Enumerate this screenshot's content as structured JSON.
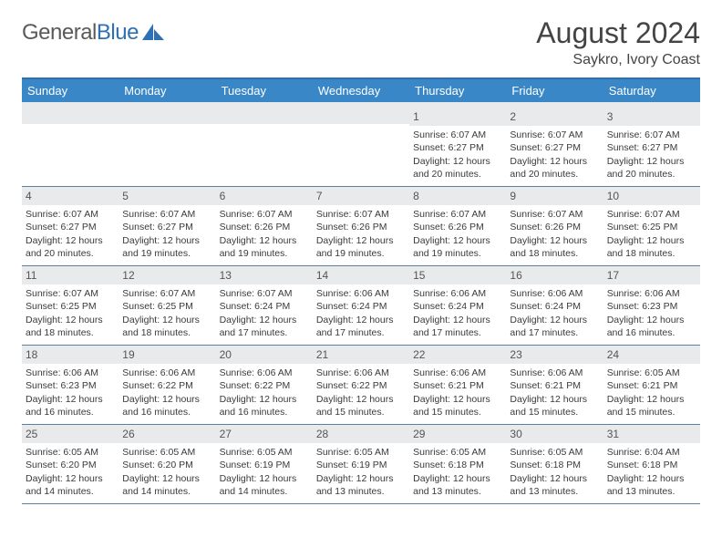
{
  "logo": {
    "text_gray": "General",
    "text_blue": "Blue"
  },
  "title": "August 2024",
  "subtitle": "Saykro, Ivory Coast",
  "colors": {
    "header_bar": "#3a87c8",
    "border_top": "#2f6fb3",
    "week_divider": "#5b7fa5",
    "daynum_bg": "#e9eaeb",
    "text": "#3a3a3a"
  },
  "weekdays": [
    "Sunday",
    "Monday",
    "Tuesday",
    "Wednesday",
    "Thursday",
    "Friday",
    "Saturday"
  ],
  "weeks": [
    [
      {
        "num": "",
        "lines": []
      },
      {
        "num": "",
        "lines": []
      },
      {
        "num": "",
        "lines": []
      },
      {
        "num": "",
        "lines": []
      },
      {
        "num": "1",
        "lines": [
          "Sunrise: 6:07 AM",
          "Sunset: 6:27 PM",
          "Daylight: 12 hours and 20 minutes."
        ]
      },
      {
        "num": "2",
        "lines": [
          "Sunrise: 6:07 AM",
          "Sunset: 6:27 PM",
          "Daylight: 12 hours and 20 minutes."
        ]
      },
      {
        "num": "3",
        "lines": [
          "Sunrise: 6:07 AM",
          "Sunset: 6:27 PM",
          "Daylight: 12 hours and 20 minutes."
        ]
      }
    ],
    [
      {
        "num": "4",
        "lines": [
          "Sunrise: 6:07 AM",
          "Sunset: 6:27 PM",
          "Daylight: 12 hours and 20 minutes."
        ]
      },
      {
        "num": "5",
        "lines": [
          "Sunrise: 6:07 AM",
          "Sunset: 6:27 PM",
          "Daylight: 12 hours and 19 minutes."
        ]
      },
      {
        "num": "6",
        "lines": [
          "Sunrise: 6:07 AM",
          "Sunset: 6:26 PM",
          "Daylight: 12 hours and 19 minutes."
        ]
      },
      {
        "num": "7",
        "lines": [
          "Sunrise: 6:07 AM",
          "Sunset: 6:26 PM",
          "Daylight: 12 hours and 19 minutes."
        ]
      },
      {
        "num": "8",
        "lines": [
          "Sunrise: 6:07 AM",
          "Sunset: 6:26 PM",
          "Daylight: 12 hours and 19 minutes."
        ]
      },
      {
        "num": "9",
        "lines": [
          "Sunrise: 6:07 AM",
          "Sunset: 6:26 PM",
          "Daylight: 12 hours and 18 minutes."
        ]
      },
      {
        "num": "10",
        "lines": [
          "Sunrise: 6:07 AM",
          "Sunset: 6:25 PM",
          "Daylight: 12 hours and 18 minutes."
        ]
      }
    ],
    [
      {
        "num": "11",
        "lines": [
          "Sunrise: 6:07 AM",
          "Sunset: 6:25 PM",
          "Daylight: 12 hours and 18 minutes."
        ]
      },
      {
        "num": "12",
        "lines": [
          "Sunrise: 6:07 AM",
          "Sunset: 6:25 PM",
          "Daylight: 12 hours and 18 minutes."
        ]
      },
      {
        "num": "13",
        "lines": [
          "Sunrise: 6:07 AM",
          "Sunset: 6:24 PM",
          "Daylight: 12 hours and 17 minutes."
        ]
      },
      {
        "num": "14",
        "lines": [
          "Sunrise: 6:06 AM",
          "Sunset: 6:24 PM",
          "Daylight: 12 hours and 17 minutes."
        ]
      },
      {
        "num": "15",
        "lines": [
          "Sunrise: 6:06 AM",
          "Sunset: 6:24 PM",
          "Daylight: 12 hours and 17 minutes."
        ]
      },
      {
        "num": "16",
        "lines": [
          "Sunrise: 6:06 AM",
          "Sunset: 6:24 PM",
          "Daylight: 12 hours and 17 minutes."
        ]
      },
      {
        "num": "17",
        "lines": [
          "Sunrise: 6:06 AM",
          "Sunset: 6:23 PM",
          "Daylight: 12 hours and 16 minutes."
        ]
      }
    ],
    [
      {
        "num": "18",
        "lines": [
          "Sunrise: 6:06 AM",
          "Sunset: 6:23 PM",
          "Daylight: 12 hours and 16 minutes."
        ]
      },
      {
        "num": "19",
        "lines": [
          "Sunrise: 6:06 AM",
          "Sunset: 6:22 PM",
          "Daylight: 12 hours and 16 minutes."
        ]
      },
      {
        "num": "20",
        "lines": [
          "Sunrise: 6:06 AM",
          "Sunset: 6:22 PM",
          "Daylight: 12 hours and 16 minutes."
        ]
      },
      {
        "num": "21",
        "lines": [
          "Sunrise: 6:06 AM",
          "Sunset: 6:22 PM",
          "Daylight: 12 hours and 15 minutes."
        ]
      },
      {
        "num": "22",
        "lines": [
          "Sunrise: 6:06 AM",
          "Sunset: 6:21 PM",
          "Daylight: 12 hours and 15 minutes."
        ]
      },
      {
        "num": "23",
        "lines": [
          "Sunrise: 6:06 AM",
          "Sunset: 6:21 PM",
          "Daylight: 12 hours and 15 minutes."
        ]
      },
      {
        "num": "24",
        "lines": [
          "Sunrise: 6:05 AM",
          "Sunset: 6:21 PM",
          "Daylight: 12 hours and 15 minutes."
        ]
      }
    ],
    [
      {
        "num": "25",
        "lines": [
          "Sunrise: 6:05 AM",
          "Sunset: 6:20 PM",
          "Daylight: 12 hours and 14 minutes."
        ]
      },
      {
        "num": "26",
        "lines": [
          "Sunrise: 6:05 AM",
          "Sunset: 6:20 PM",
          "Daylight: 12 hours and 14 minutes."
        ]
      },
      {
        "num": "27",
        "lines": [
          "Sunrise: 6:05 AM",
          "Sunset: 6:19 PM",
          "Daylight: 12 hours and 14 minutes."
        ]
      },
      {
        "num": "28",
        "lines": [
          "Sunrise: 6:05 AM",
          "Sunset: 6:19 PM",
          "Daylight: 12 hours and 13 minutes."
        ]
      },
      {
        "num": "29",
        "lines": [
          "Sunrise: 6:05 AM",
          "Sunset: 6:18 PM",
          "Daylight: 12 hours and 13 minutes."
        ]
      },
      {
        "num": "30",
        "lines": [
          "Sunrise: 6:05 AM",
          "Sunset: 6:18 PM",
          "Daylight: 12 hours and 13 minutes."
        ]
      },
      {
        "num": "31",
        "lines": [
          "Sunrise: 6:04 AM",
          "Sunset: 6:18 PM",
          "Daylight: 12 hours and 13 minutes."
        ]
      }
    ]
  ]
}
